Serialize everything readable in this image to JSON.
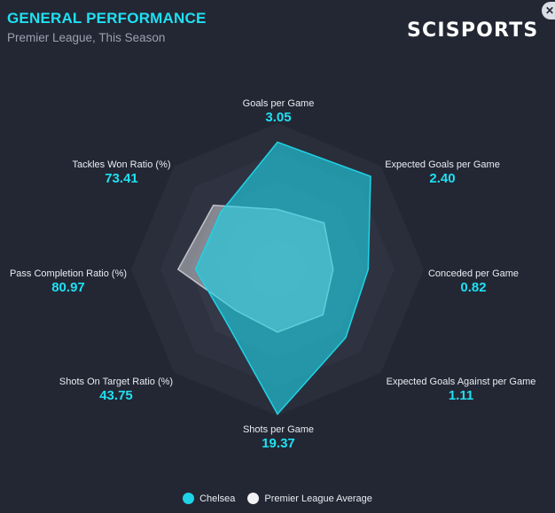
{
  "header": {
    "title": "GENERAL PERFORMANCE",
    "subtitle": "Premier League, This Season"
  },
  "brand": "SCISPORTS",
  "close_icon": "close-icon",
  "colors": {
    "team": "#1fd3e6",
    "average": "#e8e8ea",
    "accent": "#1fe0f2",
    "background": "#232734"
  },
  "chart_data": {
    "type": "radar",
    "title": "GENERAL PERFORMANCE",
    "subtitle": "Premier League, This Season",
    "axes": [
      "Goals per Game",
      "Expected Goals per Game",
      "Conceded per Game",
      "Expected Goals Against per Game",
      "Shots per Game",
      "Shots On Target Ratio (%)",
      "Pass Completion Ratio (%)",
      "Tackles Won Ratio (%)"
    ],
    "value_labels": [
      "3.05",
      "2.40",
      "0.82",
      "1.11",
      "19.37",
      "43.75",
      "80.97",
      "73.41"
    ],
    "series": [
      {
        "name": "Chelsea",
        "normalized": [
          0.87,
          0.9,
          0.62,
          0.66,
          0.99,
          0.5,
          0.56,
          0.55
        ]
      },
      {
        "name": "Premier League Average",
        "normalized": [
          0.41,
          0.45,
          0.38,
          0.44,
          0.43,
          0.4,
          0.68,
          0.62
        ]
      }
    ],
    "rings": 5,
    "legend_position": "bottom-center"
  },
  "legend": {
    "items": [
      {
        "label": "Chelsea"
      },
      {
        "label": "Premier League Average"
      }
    ]
  }
}
